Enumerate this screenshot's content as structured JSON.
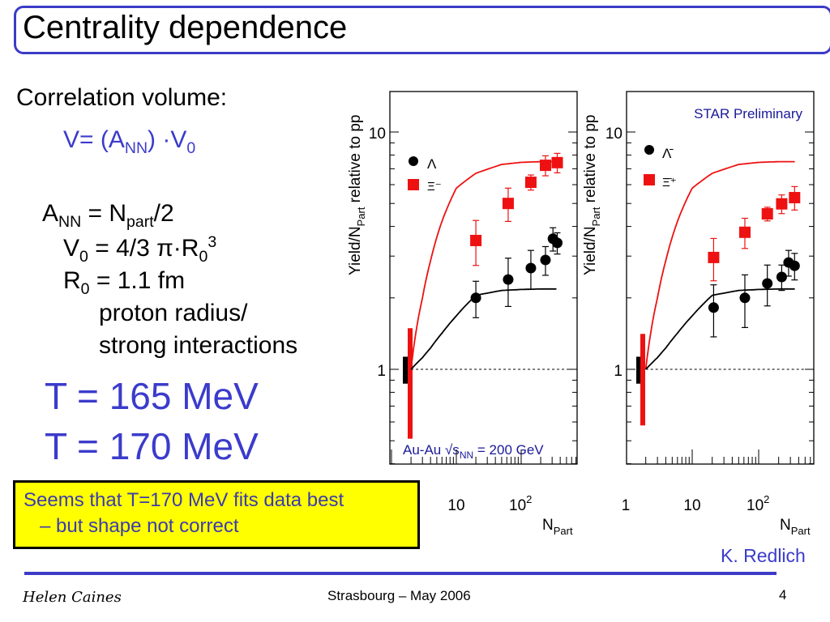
{
  "title": "Centrality dependence",
  "left_text": {
    "heading": "Correlation volume:",
    "formula": {
      "lhs": "V= (A",
      "sub1": "NN",
      "mid": ") ·V",
      "sub2": "0"
    },
    "ann": {
      "a": "A",
      "a_sub": "NN",
      "eq": " = N",
      "n_sub": "part",
      "rest": "/2"
    },
    "v0": {
      "a": "V",
      "a_sub": "0",
      "rest": " = 4/3 π·R",
      "r_sub": "0",
      "r_sup": "3"
    },
    "r0": {
      "a": "R",
      "a_sub": "0",
      "rest": " = 1.1 fm"
    },
    "desc1": "proton radius/",
    "desc2": "strong interactions",
    "temperature_a": "T = 165 MeV",
    "temperature_b": "T = 170 MeV"
  },
  "note": {
    "line1": "Seems that T=170 MeV fits data best",
    "line2": "– but shape not correct"
  },
  "credit": "K. Redlich",
  "footer": {
    "author": "Helen Caines",
    "venue": "Strasbourg  –  May 2006",
    "page": "4"
  },
  "colors": {
    "accent": "#3b3bc8",
    "data_red": "#ee1111",
    "data_black": "#000000",
    "note_bg": "#ffff00",
    "label_blue": "#1a1a99"
  },
  "chart_data": [
    {
      "type": "scatter",
      "xscale": "log",
      "yscale": "log",
      "xlim": [
        1,
        700
      ],
      "ylim": [
        0.4,
        15
      ],
      "ylabel": {
        "main": "Yield/N",
        "sub": "Part",
        "rest": " relative to pp"
      },
      "xlabel": {
        "main": "N",
        "sub": "Part"
      },
      "ytick_labels": [
        "10",
        "1"
      ],
      "xtick_labels": [
        {
          "base": "10",
          "exp": ""
        },
        {
          "base": "10",
          "exp": "2"
        }
      ],
      "annotation": {
        "main": "Au-Au √s",
        "sub": "NN",
        "rest": " = 200 GeV"
      },
      "reference_line": 1,
      "series": [
        {
          "name": "Λ",
          "marker": "circle",
          "color": "#000000",
          "x": [
            20,
            63,
            141,
            237,
            309,
            360
          ],
          "y": [
            2.0,
            2.39,
            2.67,
            2.89,
            3.55,
            3.41
          ],
          "err": [
            0.35,
            0.55,
            0.5,
            0.4,
            0.4,
            0.35
          ]
        },
        {
          "name": "Ξ⁻",
          "marker": "square",
          "color": "#ee1111",
          "x": [
            20,
            63,
            141,
            237,
            360
          ],
          "y": [
            3.49,
            5.0,
            6.14,
            7.24,
            7.43
          ],
          "err": [
            0.75,
            0.8,
            0.45,
            0.7,
            0.7
          ]
        }
      ],
      "model_curves": [
        {
          "color": "#ee1111",
          "x": [
            2,
            3,
            4,
            6,
            10,
            20,
            50,
            100,
            200,
            350
          ],
          "y": [
            1,
            2.0,
            2.87,
            4.2,
            5.8,
            6.7,
            7.3,
            7.45,
            7.5,
            7.5
          ]
        },
        {
          "color": "#000000",
          "x": [
            2,
            3,
            4,
            6,
            10,
            20,
            50,
            100,
            200,
            350
          ],
          "y": [
            1,
            1.12,
            1.23,
            1.42,
            1.68,
            2.05,
            2.15,
            2.17,
            2.18,
            2.18
          ]
        }
      ],
      "systematic_bars": [
        {
          "color": "#000000",
          "range": [
            0.87,
            1.13
          ]
        },
        {
          "color": "#ee1111",
          "range": [
            0.51,
            1.49
          ]
        }
      ]
    },
    {
      "type": "scatter",
      "xscale": "log",
      "yscale": "log",
      "xlim": [
        1,
        700
      ],
      "ylim": [
        0.4,
        15
      ],
      "ylabel": {
        "main": "Yield/N",
        "sub": "Part",
        "rest": " relative to pp"
      },
      "xlabel": {
        "main": "N",
        "sub": "Part"
      },
      "ytick_labels": [
        "10",
        "1"
      ],
      "xtick_labels": [
        {
          "base": "1",
          "exp": ""
        },
        {
          "base": "10",
          "exp": ""
        },
        {
          "base": "10",
          "exp": "2"
        }
      ],
      "annotation": {
        "main": "STAR Preliminary"
      },
      "reference_line": 1,
      "series": [
        {
          "name": "Λ̄",
          "marker": "circle",
          "color": "#000000",
          "x": [
            21,
            62,
            135,
            222,
            282,
            347
          ],
          "y": [
            1.82,
            2.0,
            2.3,
            2.45,
            2.82,
            2.73
          ],
          "err": [
            0.45,
            0.5,
            0.45,
            0.3,
            0.35,
            0.35
          ]
        },
        {
          "name": "Ξ̄⁺",
          "marker": "square",
          "color": "#ee1111",
          "x": [
            21,
            62,
            135,
            222,
            347
          ],
          "y": [
            2.96,
            3.78,
            4.52,
            4.98,
            5.29
          ],
          "err": [
            0.6,
            0.55,
            0.3,
            0.45,
            0.6
          ]
        }
      ],
      "model_curves": [
        {
          "color": "#ee1111",
          "x": [
            2,
            3,
            4,
            6,
            10,
            20,
            50,
            100,
            200,
            350
          ],
          "y": [
            1,
            2.0,
            2.87,
            4.2,
            5.8,
            6.7,
            7.3,
            7.45,
            7.5,
            7.5
          ]
        },
        {
          "color": "#000000",
          "x": [
            2,
            3,
            4,
            6,
            10,
            20,
            50,
            100,
            200,
            350
          ],
          "y": [
            1,
            1.12,
            1.23,
            1.42,
            1.68,
            2.05,
            2.15,
            2.17,
            2.18,
            2.18
          ]
        }
      ],
      "systematic_bars": [
        {
          "color": "#000000",
          "range": [
            0.87,
            1.13
          ]
        },
        {
          "color": "#ee1111",
          "range": [
            0.58,
            1.41
          ]
        }
      ]
    }
  ]
}
